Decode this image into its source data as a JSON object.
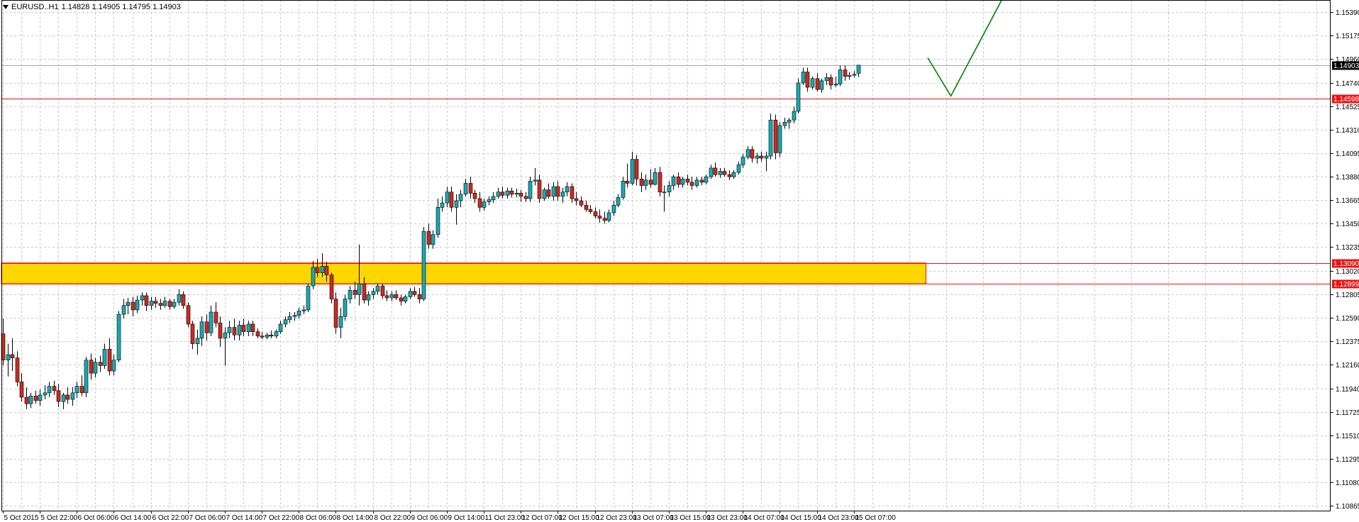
{
  "header": {
    "symbol": "EURUSD..H1",
    "ohlc": "1.14828 1.14905 1.14795 1.14903"
  },
  "colors": {
    "background": "#ffffff",
    "grid": "#c8c8c8",
    "bull_candle": "#1aa9b1",
    "bear_candle": "#cc2a1f",
    "wick": "#000000",
    "zone_fill": "#ffd700",
    "zone_border": "#ee1111",
    "level_line": "#ee1111",
    "bid_line": "#a6a6a6",
    "projection": "#008000",
    "price_tag_red": "#ee1111",
    "price_tag_black": "#000000"
  },
  "chart_data": {
    "type": "candlestick",
    "timeframe": "H1",
    "grid": true,
    "price_axis": {
      "ticks": [
        "1.15390",
        "1.15175",
        "1.14960",
        "1.14740",
        "1.14525",
        "1.14310",
        "1.14095",
        "1.13880",
        "1.13665",
        "1.13450",
        "1.13235",
        "1.13020",
        "1.12805",
        "1.12590",
        "1.12375",
        "1.12160",
        "1.11940",
        "1.11725",
        "1.11510",
        "1.11295",
        "1.11080",
        "1.10865"
      ],
      "ylim": [
        1.1082,
        1.155
      ]
    },
    "time_axis": {
      "labels": [
        "5 Oct 2015",
        "5 Oct 22:00",
        "6 Oct 06:00",
        "6 Oct 14:00",
        "6 Oct 22:00",
        "7 Oct 06:00",
        "7 Oct 14:00",
        "7 Oct 22:00",
        "8 Oct 06:00",
        "8 Oct 14:00",
        "8 Oct 22:00",
        "9 Oct 06:00",
        "9 Oct 14:00",
        "11 Oct 23:00",
        "12 Oct 07:00",
        "12 Oct 15:00",
        "12 Oct 23:00",
        "13 Oct 07:00",
        "13 Oct 15:00",
        "13 Oct 23:00",
        "14 Oct 07:00",
        "14 Oct 15:00",
        "14 Oct 23:00",
        "15 Oct 07:00"
      ],
      "bars_per_label": 8
    },
    "levels": [
      {
        "price": 1.14598,
        "label": "1.14598"
      },
      {
        "price": 1.1309,
        "label": "1.13090"
      },
      {
        "price": 1.12899,
        "label": "1.12899"
      }
    ],
    "bid_line": {
      "price": 1.14903,
      "label": "1.14903"
    },
    "zone": {
      "top": 1.1309,
      "bottom": 1.12899,
      "end_bar": 199
    },
    "projection": [
      {
        "bar": 200,
        "price": 1.1497
      },
      {
        "bar": 205,
        "price": 1.1462
      },
      {
        "bar": 216,
        "price": 1.155
      }
    ],
    "candles": [
      [
        1.1244,
        1.1258,
        1.1215,
        1.122
      ],
      [
        1.122,
        1.1235,
        1.1205,
        1.1225
      ],
      [
        1.1225,
        1.124,
        1.121,
        1.1222
      ],
      [
        1.1222,
        1.1228,
        1.1196,
        1.12
      ],
      [
        1.12,
        1.1208,
        1.1182,
        1.1186
      ],
      [
        1.1186,
        1.1195,
        1.1175,
        1.118
      ],
      [
        1.118,
        1.119,
        1.1176,
        1.1187
      ],
      [
        1.1187,
        1.1192,
        1.118,
        1.1183
      ],
      [
        1.1183,
        1.1193,
        1.1178,
        1.1188
      ],
      [
        1.1188,
        1.1197,
        1.1184,
        1.119
      ],
      [
        1.119,
        1.12,
        1.1186,
        1.1196
      ],
      [
        1.1196,
        1.1201,
        1.1188,
        1.1192
      ],
      [
        1.1192,
        1.1198,
        1.1177,
        1.1182
      ],
      [
        1.1182,
        1.119,
        1.1175,
        1.1188
      ],
      [
        1.1188,
        1.1195,
        1.118,
        1.1184
      ],
      [
        1.1184,
        1.1195,
        1.1178,
        1.119
      ],
      [
        1.119,
        1.12,
        1.1185,
        1.1196
      ],
      [
        1.1196,
        1.1206,
        1.1187,
        1.119
      ],
      [
        1.119,
        1.1223,
        1.1186,
        1.122
      ],
      [
        1.122,
        1.1226,
        1.1202,
        1.1208
      ],
      [
        1.1208,
        1.1222,
        1.1204,
        1.1218
      ],
      [
        1.1218,
        1.1224,
        1.1209,
        1.1215
      ],
      [
        1.1215,
        1.1235,
        1.1212,
        1.123
      ],
      [
        1.123,
        1.124,
        1.1206,
        1.121
      ],
      [
        1.121,
        1.1225,
        1.1206,
        1.122
      ],
      [
        1.122,
        1.1265,
        1.1218,
        1.1262
      ],
      [
        1.1262,
        1.1276,
        1.1258,
        1.127
      ],
      [
        1.127,
        1.1277,
        1.1262,
        1.1273
      ],
      [
        1.1273,
        1.1278,
        1.126,
        1.1266
      ],
      [
        1.1266,
        1.1279,
        1.1263,
        1.1275
      ],
      [
        1.1275,
        1.1282,
        1.127,
        1.1279
      ],
      [
        1.1279,
        1.1282,
        1.1265,
        1.127
      ],
      [
        1.127,
        1.1278,
        1.1266,
        1.1274
      ],
      [
        1.1274,
        1.1278,
        1.1268,
        1.1272
      ],
      [
        1.1272,
        1.1276,
        1.1266,
        1.127
      ],
      [
        1.127,
        1.1278,
        1.1268,
        1.1274
      ],
      [
        1.1274,
        1.1276,
        1.1266,
        1.1269
      ],
      [
        1.1269,
        1.1276,
        1.1267,
        1.1273
      ],
      [
        1.1273,
        1.1285,
        1.127,
        1.128
      ],
      [
        1.128,
        1.1283,
        1.1267,
        1.127
      ],
      [
        1.127,
        1.1273,
        1.125,
        1.1253
      ],
      [
        1.1253,
        1.1256,
        1.123,
        1.1235
      ],
      [
        1.1235,
        1.1248,
        1.1225,
        1.124
      ],
      [
        1.124,
        1.126,
        1.1233,
        1.1255
      ],
      [
        1.1255,
        1.1262,
        1.1238,
        1.1245
      ],
      [
        1.1245,
        1.127,
        1.1242,
        1.1264
      ],
      [
        1.1264,
        1.1273,
        1.125,
        1.1254
      ],
      [
        1.1254,
        1.126,
        1.1232,
        1.124
      ],
      [
        1.124,
        1.125,
        1.1215,
        1.1245
      ],
      [
        1.1245,
        1.1256,
        1.124,
        1.125
      ],
      [
        1.125,
        1.1258,
        1.1238,
        1.1243
      ],
      [
        1.1243,
        1.1256,
        1.1238,
        1.1252
      ],
      [
        1.1252,
        1.1258,
        1.1242,
        1.1246
      ],
      [
        1.1246,
        1.1256,
        1.1242,
        1.1253
      ],
      [
        1.1253,
        1.1256,
        1.1242,
        1.1246
      ],
      [
        1.1246,
        1.1249,
        1.124,
        1.1242
      ],
      [
        1.1242,
        1.1246,
        1.1239,
        1.1241
      ],
      [
        1.1241,
        1.1245,
        1.1239,
        1.1243
      ],
      [
        1.1243,
        1.1247,
        1.124,
        1.1242
      ],
      [
        1.1242,
        1.1248,
        1.124,
        1.1246
      ],
      [
        1.1246,
        1.1256,
        1.1244,
        1.1253
      ],
      [
        1.1253,
        1.126,
        1.125,
        1.1257
      ],
      [
        1.1257,
        1.1264,
        1.1254,
        1.126
      ],
      [
        1.126,
        1.1264,
        1.1256,
        1.1261
      ],
      [
        1.1261,
        1.1268,
        1.1258,
        1.1265
      ],
      [
        1.1265,
        1.127,
        1.1262,
        1.1266
      ],
      [
        1.1266,
        1.129,
        1.1264,
        1.1288
      ],
      [
        1.1288,
        1.1311,
        1.1285,
        1.1305
      ],
      [
        1.1305,
        1.1313,
        1.1296,
        1.13
      ],
      [
        1.13,
        1.1318,
        1.1296,
        1.1306
      ],
      [
        1.1306,
        1.131,
        1.1292,
        1.1298
      ],
      [
        1.1298,
        1.13,
        1.1272,
        1.1276
      ],
      [
        1.1276,
        1.1282,
        1.1244,
        1.125
      ],
      [
        1.125,
        1.1268,
        1.124,
        1.126
      ],
      [
        1.126,
        1.128,
        1.1256,
        1.1276
      ],
      [
        1.1276,
        1.1288,
        1.1272,
        1.1284
      ],
      [
        1.1284,
        1.1292,
        1.1276,
        1.128
      ],
      [
        1.128,
        1.1326,
        1.127,
        1.129
      ],
      [
        1.129,
        1.1296,
        1.1272,
        1.1275
      ],
      [
        1.1275,
        1.1283,
        1.127,
        1.128
      ],
      [
        1.128,
        1.1286,
        1.1276,
        1.1283
      ],
      [
        1.1283,
        1.129,
        1.128,
        1.1288
      ],
      [
        1.1288,
        1.129,
        1.1276,
        1.1279
      ],
      [
        1.1279,
        1.1284,
        1.1274,
        1.1277
      ],
      [
        1.1277,
        1.1283,
        1.1274,
        1.128
      ],
      [
        1.128,
        1.1284,
        1.1275,
        1.1277
      ],
      [
        1.1277,
        1.128,
        1.127,
        1.1274
      ],
      [
        1.1274,
        1.128,
        1.1272,
        1.1278
      ],
      [
        1.1278,
        1.1286,
        1.1276,
        1.1283
      ],
      [
        1.1283,
        1.1287,
        1.1278,
        1.128
      ],
      [
        1.128,
        1.1286,
        1.1272,
        1.1276
      ],
      [
        1.1276,
        1.1342,
        1.1274,
        1.1338
      ],
      [
        1.1338,
        1.1345,
        1.1322,
        1.1326
      ],
      [
        1.1326,
        1.1339,
        1.1322,
        1.1335
      ],
      [
        1.1335,
        1.1368,
        1.1332,
        1.136
      ],
      [
        1.136,
        1.137,
        1.1356,
        1.1364
      ],
      [
        1.1364,
        1.1379,
        1.136,
        1.1374
      ],
      [
        1.1374,
        1.1379,
        1.1356,
        1.136
      ],
      [
        1.136,
        1.1372,
        1.1344,
        1.1366
      ],
      [
        1.1366,
        1.1376,
        1.136,
        1.1372
      ],
      [
        1.1372,
        1.1386,
        1.137,
        1.1382
      ],
      [
        1.1382,
        1.1388,
        1.1368,
        1.1373
      ],
      [
        1.1373,
        1.1376,
        1.1364,
        1.1368
      ],
      [
        1.1368,
        1.1374,
        1.1356,
        1.136
      ],
      [
        1.136,
        1.1368,
        1.1357,
        1.1365
      ],
      [
        1.1365,
        1.137,
        1.1362,
        1.1367
      ],
      [
        1.1367,
        1.1374,
        1.1364,
        1.137
      ],
      [
        1.137,
        1.1378,
        1.1368,
        1.1374
      ],
      [
        1.1374,
        1.1379,
        1.1368,
        1.1371
      ],
      [
        1.1371,
        1.1378,
        1.1368,
        1.1375
      ],
      [
        1.1375,
        1.1378,
        1.1369,
        1.1372
      ],
      [
        1.1372,
        1.1377,
        1.1369,
        1.1373
      ],
      [
        1.1373,
        1.1376,
        1.1365,
        1.137
      ],
      [
        1.137,
        1.1374,
        1.1365,
        1.1368
      ],
      [
        1.1368,
        1.1388,
        1.1365,
        1.1384
      ],
      [
        1.1384,
        1.1396,
        1.138,
        1.1385
      ],
      [
        1.1385,
        1.139,
        1.1364,
        1.1368
      ],
      [
        1.1368,
        1.1378,
        1.1366,
        1.1376
      ],
      [
        1.1376,
        1.1382,
        1.1368,
        1.137
      ],
      [
        1.137,
        1.1383,
        1.1366,
        1.1379
      ],
      [
        1.1379,
        1.1384,
        1.1366,
        1.137
      ],
      [
        1.137,
        1.1378,
        1.1364,
        1.1374
      ],
      [
        1.1374,
        1.1383,
        1.137,
        1.1379
      ],
      [
        1.1379,
        1.1382,
        1.1364,
        1.1368
      ],
      [
        1.1368,
        1.1374,
        1.1362,
        1.1366
      ],
      [
        1.1366,
        1.137,
        1.136,
        1.1362
      ],
      [
        1.1362,
        1.1366,
        1.1356,
        1.1358
      ],
      [
        1.1358,
        1.1362,
        1.1354,
        1.1356
      ],
      [
        1.1356,
        1.136,
        1.135,
        1.1352
      ],
      [
        1.1352,
        1.1358,
        1.1346,
        1.135
      ],
      [
        1.135,
        1.1356,
        1.1345,
        1.1348
      ],
      [
        1.1348,
        1.1358,
        1.1346,
        1.1355
      ],
      [
        1.1355,
        1.1366,
        1.1352,
        1.1362
      ],
      [
        1.1362,
        1.1372,
        1.136,
        1.1369
      ],
      [
        1.1369,
        1.1388,
        1.1367,
        1.1384
      ],
      [
        1.1384,
        1.14,
        1.1378,
        1.1382
      ],
      [
        1.1382,
        1.1411,
        1.138,
        1.1404
      ],
      [
        1.1404,
        1.1408,
        1.138,
        1.1386
      ],
      [
        1.1386,
        1.1392,
        1.1374,
        1.138
      ],
      [
        1.138,
        1.139,
        1.1376,
        1.1385
      ],
      [
        1.1385,
        1.1395,
        1.1378,
        1.1381
      ],
      [
        1.1381,
        1.1396,
        1.138,
        1.1392
      ],
      [
        1.1392,
        1.1397,
        1.137,
        1.1374
      ],
      [
        1.1374,
        1.138,
        1.1356,
        1.1374
      ],
      [
        1.1374,
        1.1384,
        1.137,
        1.138
      ],
      [
        1.138,
        1.139,
        1.1376,
        1.1388
      ],
      [
        1.1388,
        1.1392,
        1.1378,
        1.1381
      ],
      [
        1.1381,
        1.1388,
        1.1378,
        1.1386
      ],
      [
        1.1386,
        1.139,
        1.138,
        1.1383
      ],
      [
        1.1383,
        1.1388,
        1.1376,
        1.138
      ],
      [
        1.138,
        1.1388,
        1.1378,
        1.1385
      ],
      [
        1.1385,
        1.1388,
        1.138,
        1.1383
      ],
      [
        1.1383,
        1.139,
        1.1381,
        1.1388
      ],
      [
        1.1388,
        1.1399,
        1.1386,
        1.1396
      ],
      [
        1.1396,
        1.1401,
        1.1388,
        1.139
      ],
      [
        1.139,
        1.1396,
        1.1387,
        1.1393
      ],
      [
        1.1393,
        1.1396,
        1.1388,
        1.139
      ],
      [
        1.139,
        1.1394,
        1.1385,
        1.1388
      ],
      [
        1.1388,
        1.1394,
        1.1386,
        1.1392
      ],
      [
        1.1392,
        1.1402,
        1.139,
        1.1399
      ],
      [
        1.1399,
        1.1409,
        1.1396,
        1.1406
      ],
      [
        1.1406,
        1.1416,
        1.1404,
        1.1413
      ],
      [
        1.1413,
        1.1416,
        1.1401,
        1.1405
      ],
      [
        1.1405,
        1.141,
        1.14,
        1.1407
      ],
      [
        1.1407,
        1.1411,
        1.1402,
        1.1405
      ],
      [
        1.1405,
        1.1411,
        1.1393,
        1.1407
      ],
      [
        1.1407,
        1.1446,
        1.1404,
        1.144
      ],
      [
        1.144,
        1.1445,
        1.1404,
        1.141
      ],
      [
        1.141,
        1.1438,
        1.1406,
        1.1435
      ],
      [
        1.1435,
        1.1442,
        1.1432,
        1.1438
      ],
      [
        1.1438,
        1.1442,
        1.1432,
        1.144
      ],
      [
        1.144,
        1.1452,
        1.1437,
        1.1448
      ],
      [
        1.1448,
        1.1478,
        1.1446,
        1.1474
      ],
      [
        1.1474,
        1.1488,
        1.1472,
        1.1484
      ],
      [
        1.1484,
        1.1488,
        1.1466,
        1.147
      ],
      [
        1.147,
        1.148,
        1.1468,
        1.1478
      ],
      [
        1.1478,
        1.1483,
        1.1466,
        1.1468
      ],
      [
        1.1468,
        1.1478,
        1.1465,
        1.1476
      ],
      [
        1.1476,
        1.1483,
        1.1472,
        1.1479
      ],
      [
        1.1479,
        1.1482,
        1.1468,
        1.1472
      ],
      [
        1.1472,
        1.148,
        1.147,
        1.1473
      ],
      [
        1.1473,
        1.149,
        1.1471,
        1.1486
      ],
      [
        1.1486,
        1.149,
        1.1476,
        1.148
      ],
      [
        1.148,
        1.1484,
        1.1477,
        1.1481
      ],
      [
        1.1481,
        1.1485,
        1.1479,
        1.1482
      ],
      [
        1.14828,
        1.14905,
        1.14795,
        1.14903
      ]
    ]
  }
}
